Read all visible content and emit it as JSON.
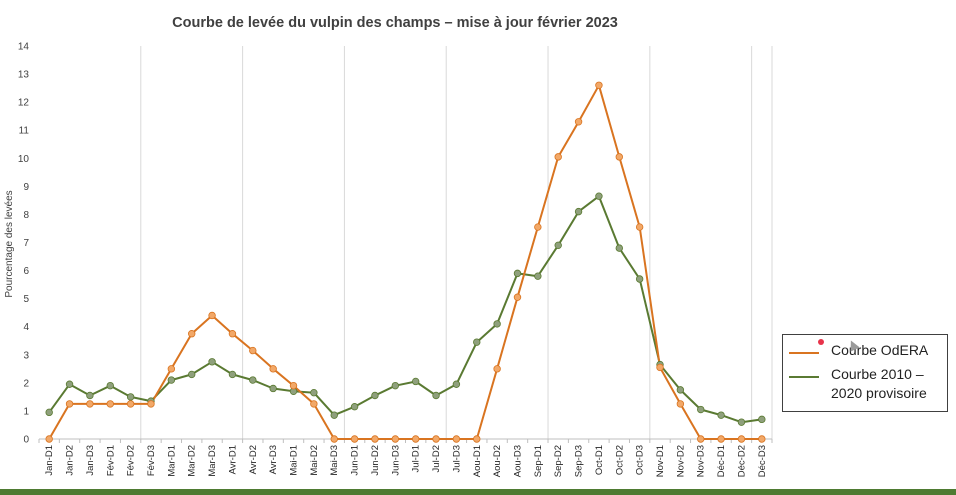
{
  "colors": {
    "series_1": "#d97420",
    "series_1_marker": "#f2a868",
    "series_2": "#5a7a32",
    "series_2_marker": "#8fa07c",
    "grid": "#d9d9d9",
    "axis": "#bfbfbf",
    "bottom_bar": "#4e7b32"
  },
  "chart_data": {
    "type": "line",
    "title": "Courbe de levée du vulpin des champs – mise à jour février 2023",
    "xlabel": "",
    "ylabel": "Pourcentage des levées",
    "ylim": [
      0,
      14
    ],
    "yticks": [
      0,
      1,
      2,
      3,
      4,
      5,
      6,
      7,
      8,
      9,
      10,
      11,
      12,
      13,
      14
    ],
    "grid": "vertical lines every 5 categories",
    "legend": "right",
    "categories": [
      "Jan-D1",
      "Jan-D2",
      "Jan-D3",
      "Fév-D1",
      "Fév-D2",
      "Fév-D3",
      "Mar-D1",
      "Mar-D2",
      "Mar-D3",
      "Avr-D1",
      "Avr-D2",
      "Avr-D3",
      "Mai-D1",
      "Mai-D2",
      "Mai-D3",
      "Jun-D1",
      "Jun-D2",
      "Jun-D3",
      "Jul-D1",
      "Jul-D2",
      "Jul-D3",
      "Aou-D1",
      "Aou-D2",
      "Aou-D3",
      "Sep-D1",
      "Sep-D2",
      "Sep-D3",
      "Oct-D1",
      "Oct-D2",
      "Oct-D3",
      "Nov-D1",
      "Nov-D2",
      "Nov-D3",
      "Déc-D1",
      "Déc-D2",
      "Déc-D3"
    ],
    "series": [
      {
        "name": "Courbe OdERA",
        "values": [
          0,
          1.25,
          1.25,
          1.25,
          1.25,
          1.25,
          2.5,
          3.75,
          4.4,
          3.75,
          3.15,
          2.5,
          1.9,
          1.25,
          0,
          0,
          0,
          0,
          0,
          0,
          0,
          0,
          2.5,
          5.05,
          7.55,
          10.05,
          11.3,
          12.6,
          10.05,
          7.55,
          2.55,
          1.25,
          0,
          0,
          0,
          0
        ]
      },
      {
        "name": "Courbe 2010 – 2020 provisoire",
        "values": [
          0.95,
          1.95,
          1.55,
          1.9,
          1.5,
          1.35,
          2.1,
          2.3,
          2.75,
          2.3,
          2.1,
          1.8,
          1.7,
          1.65,
          0.85,
          1.15,
          1.55,
          1.9,
          2.05,
          1.55,
          1.95,
          3.45,
          4.1,
          5.9,
          5.8,
          6.9,
          8.1,
          8.65,
          6.8,
          5.7,
          2.65,
          1.75,
          1.05,
          0.85,
          0.6,
          0.7
        ]
      }
    ]
  },
  "legend": {
    "items": [
      {
        "label": "Courbe OdERA"
      },
      {
        "label": "Courbe 2010 – 2020 provisoire"
      }
    ]
  }
}
